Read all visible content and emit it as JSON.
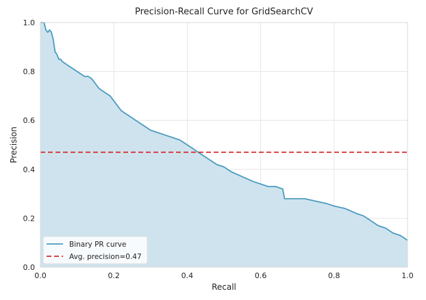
{
  "chart_data": {
    "type": "line",
    "title": "Precision-Recall Curve for GridSearchCV",
    "xlabel": "Recall",
    "ylabel": "Precision",
    "xlim": [
      0.0,
      1.0
    ],
    "ylim": [
      0.0,
      1.0
    ],
    "x_ticks": [
      "0.0",
      "0.2",
      "0.4",
      "0.6",
      "0.8",
      "1.0"
    ],
    "y_ticks": [
      "0.0",
      "0.2",
      "0.4",
      "0.6",
      "0.8",
      "1.0"
    ],
    "grid": true,
    "legend_position": "bottom-left",
    "series": [
      {
        "name": "Binary PR curve",
        "color": "#4a9bc0",
        "fill_color": "#cfe3ee",
        "style": "solid",
        "x": [
          0.0,
          0.01,
          0.015,
          0.02,
          0.025,
          0.03,
          0.035,
          0.04,
          0.045,
          0.05,
          0.055,
          0.06,
          0.07,
          0.08,
          0.09,
          0.1,
          0.11,
          0.12,
          0.13,
          0.14,
          0.15,
          0.16,
          0.17,
          0.18,
          0.19,
          0.2,
          0.21,
          0.22,
          0.23,
          0.24,
          0.25,
          0.26,
          0.28,
          0.3,
          0.32,
          0.34,
          0.36,
          0.38,
          0.4,
          0.42,
          0.44,
          0.46,
          0.48,
          0.5,
          0.52,
          0.55,
          0.58,
          0.6,
          0.62,
          0.64,
          0.66,
          0.665,
          0.67,
          0.7,
          0.72,
          0.75,
          0.78,
          0.8,
          0.83,
          0.86,
          0.88,
          0.9,
          0.92,
          0.94,
          0.96,
          0.98,
          0.99,
          1.0
        ],
        "y": [
          1.0,
          1.0,
          0.97,
          0.96,
          0.97,
          0.96,
          0.93,
          0.88,
          0.87,
          0.85,
          0.85,
          0.84,
          0.83,
          0.82,
          0.81,
          0.8,
          0.79,
          0.78,
          0.78,
          0.77,
          0.75,
          0.73,
          0.72,
          0.71,
          0.7,
          0.68,
          0.66,
          0.64,
          0.63,
          0.62,
          0.61,
          0.6,
          0.58,
          0.56,
          0.55,
          0.54,
          0.53,
          0.52,
          0.5,
          0.48,
          0.46,
          0.44,
          0.42,
          0.41,
          0.39,
          0.37,
          0.35,
          0.34,
          0.33,
          0.33,
          0.32,
          0.28,
          0.28,
          0.28,
          0.28,
          0.27,
          0.26,
          0.25,
          0.24,
          0.22,
          0.21,
          0.19,
          0.17,
          0.16,
          0.14,
          0.13,
          0.12,
          0.11
        ]
      },
      {
        "name": "Avg. precision=0.47",
        "color": "#d62728",
        "style": "dashed",
        "x": [
          0.0,
          1.0
        ],
        "y": [
          0.47,
          0.47
        ]
      }
    ]
  }
}
